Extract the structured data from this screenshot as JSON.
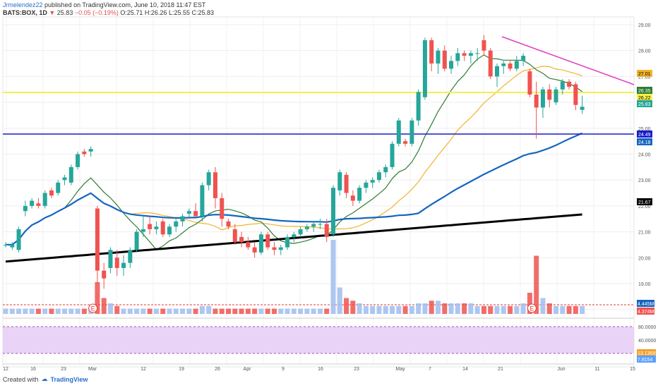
{
  "header": {
    "author": "Jrmelendez22",
    "published": "published on TradingView.com, June 10, 2018 11:47 EST",
    "symbol": "BATS:BOX, 1D",
    "last": "25.83",
    "change": "−0.05 (−0.19%)",
    "ohlc": "O:25.71 H:26.26 L:25.55 C:25.83"
  },
  "footer": {
    "created_with": "Created with",
    "brand": "TradingView"
  },
  "colors": {
    "up": "#26a69a",
    "down": "#ef5350",
    "sma_short": "#2e7d32",
    "sma_mid": "#f0b429",
    "sma_long": "#1565c0",
    "sma_200": "#000000",
    "trend": "#e040c0",
    "support_h": "#f7f04a",
    "support_blue": "#1a1acc",
    "volume": "#9fbdf0"
  },
  "chart_data": [
    {
      "type": "candlestick",
      "title": "BATS:BOX, 1D",
      "price_ticks": [
        "29.00",
        "28.00",
        "27.00",
        "26.00",
        "25.00",
        "24.00",
        "23.00",
        "22.00",
        "21.00",
        "20.00",
        "19.00",
        "18.00"
      ],
      "ylim": [
        17.8,
        29.3
      ],
      "price_labels": [
        {
          "value": "27.01",
          "color": "#f0b429",
          "text_color": "#000"
        },
        {
          "value": "26.35",
          "color": "#2e7d32",
          "text_color": "#fff"
        },
        {
          "value": "26.22",
          "color": "#f7f04a",
          "text_color": "#000"
        },
        {
          "value": "25.83",
          "color": "#26a69a",
          "text_color": "#fff"
        },
        {
          "value": "24.49",
          "color": "#1a1acc",
          "text_color": "#fff"
        },
        {
          "value": "24.18",
          "color": "#1565c0",
          "text_color": "#fff"
        },
        {
          "value": "21.67",
          "color": "#000000",
          "text_color": "#fff"
        }
      ],
      "x_ticks": [
        "12",
        "16",
        "23",
        "Mar",
        "12",
        "19",
        "26",
        "Apr",
        "9",
        "16",
        "23",
        "May",
        "7",
        "14",
        "21",
        "Jun",
        "11",
        "15"
      ],
      "candles": [
        {
          "o": 20.5,
          "h": 20.6,
          "l": 20.4,
          "c": 20.5
        },
        {
          "o": 20.4,
          "h": 20.6,
          "l": 20.3,
          "c": 20.5
        },
        {
          "o": 20.3,
          "h": 21.2,
          "l": 20.2,
          "c": 21.1
        },
        {
          "o": 21.8,
          "h": 22.2,
          "l": 21.6,
          "c": 22.0
        },
        {
          "o": 22.0,
          "h": 22.3,
          "l": 21.9,
          "c": 22.2
        },
        {
          "o": 22.1,
          "h": 22.3,
          "l": 21.9,
          "c": 22.0
        },
        {
          "o": 22.0,
          "h": 22.6,
          "l": 21.9,
          "c": 22.5
        },
        {
          "o": 22.6,
          "h": 22.7,
          "l": 22.3,
          "c": 22.4
        },
        {
          "o": 22.5,
          "h": 23.0,
          "l": 22.4,
          "c": 22.9
        },
        {
          "o": 23.0,
          "h": 23.2,
          "l": 22.8,
          "c": 23.1
        },
        {
          "o": 22.9,
          "h": 23.6,
          "l": 22.8,
          "c": 23.5
        },
        {
          "o": 23.5,
          "h": 24.1,
          "l": 23.4,
          "c": 24.0
        },
        {
          "o": 24.1,
          "h": 24.2,
          "l": 23.9,
          "c": 24.0
        },
        {
          "o": 24.1,
          "h": 24.3,
          "l": 23.9,
          "c": 24.2
        },
        {
          "o": 21.9,
          "h": 22.0,
          "l": 19.0,
          "c": 19.5
        },
        {
          "o": 19.5,
          "h": 19.8,
          "l": 18.8,
          "c": 19.2
        },
        {
          "o": 19.6,
          "h": 20.4,
          "l": 19.4,
          "c": 20.3
        },
        {
          "o": 20.0,
          "h": 20.3,
          "l": 19.3,
          "c": 19.6
        },
        {
          "o": 19.6,
          "h": 20.1,
          "l": 19.3,
          "c": 19.8
        },
        {
          "o": 19.8,
          "h": 20.4,
          "l": 19.6,
          "c": 20.3
        },
        {
          "o": 20.3,
          "h": 21.1,
          "l": 20.2,
          "c": 21.0
        },
        {
          "o": 21.0,
          "h": 21.6,
          "l": 20.8,
          "c": 21.1
        },
        {
          "o": 21.3,
          "h": 21.6,
          "l": 20.9,
          "c": 21.1
        },
        {
          "o": 21.1,
          "h": 21.4,
          "l": 20.9,
          "c": 21.2
        },
        {
          "o": 21.4,
          "h": 21.5,
          "l": 20.8,
          "c": 20.9
        },
        {
          "o": 20.9,
          "h": 21.3,
          "l": 20.8,
          "c": 21.2
        },
        {
          "o": 21.2,
          "h": 21.5,
          "l": 21.0,
          "c": 21.4
        },
        {
          "o": 21.4,
          "h": 21.7,
          "l": 21.2,
          "c": 21.6
        },
        {
          "o": 21.7,
          "h": 21.9,
          "l": 21.5,
          "c": 21.8
        },
        {
          "o": 21.8,
          "h": 22.1,
          "l": 21.6,
          "c": 21.6
        },
        {
          "o": 21.6,
          "h": 22.9,
          "l": 21.4,
          "c": 22.8
        },
        {
          "o": 22.8,
          "h": 23.4,
          "l": 22.6,
          "c": 23.3
        },
        {
          "o": 23.3,
          "h": 23.5,
          "l": 21.9,
          "c": 22.3
        },
        {
          "o": 22.3,
          "h": 22.5,
          "l": 21.2,
          "c": 21.5
        },
        {
          "o": 21.4,
          "h": 21.5,
          "l": 21.1,
          "c": 21.2
        },
        {
          "o": 21.1,
          "h": 21.3,
          "l": 20.5,
          "c": 20.6
        },
        {
          "o": 20.8,
          "h": 21.0,
          "l": 20.4,
          "c": 20.6
        },
        {
          "o": 20.6,
          "h": 20.8,
          "l": 20.3,
          "c": 20.4
        },
        {
          "o": 20.4,
          "h": 20.6,
          "l": 20.0,
          "c": 20.2
        },
        {
          "o": 20.2,
          "h": 21.0,
          "l": 20.1,
          "c": 20.9
        },
        {
          "o": 20.9,
          "h": 21.0,
          "l": 20.3,
          "c": 20.4
        },
        {
          "o": 20.4,
          "h": 20.6,
          "l": 20.1,
          "c": 20.3
        },
        {
          "o": 20.3,
          "h": 20.5,
          "l": 20.1,
          "c": 20.4
        },
        {
          "o": 20.4,
          "h": 20.9,
          "l": 20.3,
          "c": 20.8
        },
        {
          "o": 20.8,
          "h": 21.0,
          "l": 20.6,
          "c": 20.9
        },
        {
          "o": 20.9,
          "h": 21.2,
          "l": 20.8,
          "c": 21.1
        },
        {
          "o": 21.1,
          "h": 21.3,
          "l": 21.0,
          "c": 21.2
        },
        {
          "o": 21.2,
          "h": 21.4,
          "l": 21.0,
          "c": 21.3
        },
        {
          "o": 21.3,
          "h": 21.5,
          "l": 21.1,
          "c": 21.3
        },
        {
          "o": 21.3,
          "h": 21.5,
          "l": 20.6,
          "c": 20.8
        },
        {
          "o": 20.9,
          "h": 22.8,
          "l": 20.8,
          "c": 22.7
        },
        {
          "o": 22.6,
          "h": 23.4,
          "l": 22.4,
          "c": 23.3
        },
        {
          "o": 23.2,
          "h": 23.3,
          "l": 22.3,
          "c": 22.5
        },
        {
          "o": 22.4,
          "h": 22.6,
          "l": 22.0,
          "c": 22.2
        },
        {
          "o": 22.2,
          "h": 22.8,
          "l": 22.1,
          "c": 22.7
        },
        {
          "o": 22.7,
          "h": 23.0,
          "l": 22.5,
          "c": 22.9
        },
        {
          "o": 22.9,
          "h": 23.1,
          "l": 22.7,
          "c": 23.0
        },
        {
          "o": 23.0,
          "h": 23.4,
          "l": 22.9,
          "c": 23.3
        },
        {
          "o": 23.3,
          "h": 23.6,
          "l": 23.1,
          "c": 23.5
        },
        {
          "o": 23.5,
          "h": 24.5,
          "l": 23.4,
          "c": 24.4
        },
        {
          "o": 24.4,
          "h": 25.4,
          "l": 24.3,
          "c": 25.3
        },
        {
          "o": 24.5,
          "h": 24.6,
          "l": 24.3,
          "c": 24.4
        },
        {
          "o": 24.4,
          "h": 25.4,
          "l": 24.3,
          "c": 25.3
        },
        {
          "o": 25.3,
          "h": 26.5,
          "l": 25.1,
          "c": 26.4
        },
        {
          "o": 26.2,
          "h": 28.5,
          "l": 26.1,
          "c": 28.4
        },
        {
          "o": 28.4,
          "h": 28.5,
          "l": 27.2,
          "c": 27.5
        },
        {
          "o": 27.5,
          "h": 28.1,
          "l": 27.1,
          "c": 28.0
        },
        {
          "o": 28.0,
          "h": 28.2,
          "l": 27.2,
          "c": 27.3
        },
        {
          "o": 27.3,
          "h": 27.8,
          "l": 27.1,
          "c": 27.6
        },
        {
          "o": 27.6,
          "h": 28.1,
          "l": 27.4,
          "c": 27.9
        },
        {
          "o": 27.9,
          "h": 28.0,
          "l": 27.6,
          "c": 27.8
        },
        {
          "o": 27.8,
          "h": 28.0,
          "l": 27.5,
          "c": 27.9
        },
        {
          "o": 27.9,
          "h": 28.1,
          "l": 27.6,
          "c": 27.9
        },
        {
          "o": 28.4,
          "h": 28.6,
          "l": 27.8,
          "c": 28.0
        },
        {
          "o": 28.0,
          "h": 28.1,
          "l": 26.9,
          "c": 27.0
        },
        {
          "o": 27.0,
          "h": 27.5,
          "l": 26.6,
          "c": 27.4
        },
        {
          "o": 27.4,
          "h": 27.6,
          "l": 27.1,
          "c": 27.5
        },
        {
          "o": 27.5,
          "h": 27.6,
          "l": 27.2,
          "c": 27.3
        },
        {
          "o": 27.3,
          "h": 27.8,
          "l": 27.2,
          "c": 27.6
        },
        {
          "o": 27.6,
          "h": 27.9,
          "l": 27.4,
          "c": 27.8
        },
        {
          "o": 27.2,
          "h": 27.3,
          "l": 26.2,
          "c": 26.3
        },
        {
          "o": 26.3,
          "h": 26.8,
          "l": 24.6,
          "c": 25.8
        },
        {
          "o": 25.8,
          "h": 26.6,
          "l": 25.4,
          "c": 26.5
        },
        {
          "o": 26.5,
          "h": 26.7,
          "l": 25.8,
          "c": 26.1
        },
        {
          "o": 26.0,
          "h": 26.6,
          "l": 25.9,
          "c": 26.5
        },
        {
          "o": 26.5,
          "h": 26.9,
          "l": 26.3,
          "c": 26.8
        },
        {
          "o": 26.8,
          "h": 26.9,
          "l": 26.5,
          "c": 26.6
        },
        {
          "o": 26.7,
          "h": 26.8,
          "l": 25.7,
          "c": 25.9
        },
        {
          "o": 25.71,
          "h": 26.26,
          "l": 25.55,
          "c": 25.83
        }
      ],
      "volume_labels": [
        {
          "value": "4.445M",
          "color": "#1565c0"
        },
        {
          "value": "4.374M",
          "color": "#ef5350"
        }
      ],
      "volume": [
        1,
        1,
        1,
        1,
        1,
        1,
        1,
        1,
        1,
        1,
        1,
        1,
        1,
        1,
        6,
        3,
        2,
        1.5,
        1,
        1,
        1,
        1,
        1,
        1,
        1,
        1,
        1,
        1,
        1,
        1,
        1.5,
        1.5,
        1,
        1,
        1,
        1,
        1,
        1,
        1,
        1,
        1,
        1,
        1,
        1,
        1,
        1,
        1,
        1,
        1,
        1,
        14,
        5,
        3,
        2.5,
        2,
        1.5,
        1.5,
        1.5,
        1.5,
        1.5,
        1.5,
        1.5,
        1.5,
        2,
        2,
        2.5,
        2.5,
        2,
        2,
        2,
        2,
        2,
        1.5,
        1.5,
        1.5,
        1.5,
        1.5,
        1.5,
        1.5,
        2,
        4,
        11,
        3,
        2,
        1.5,
        1.5,
        1.5,
        1.5,
        1.5
      ],
      "events": [
        {
          "label": "E",
          "index": 13
        },
        {
          "label": "E",
          "index": 80
        }
      ],
      "stoch_ticks": [
        "80.0000",
        "40.0000"
      ],
      "stoch_labels": [
        {
          "value": "13.1369",
          "color": "#f0a030"
        },
        {
          "value": "7.8154",
          "color": "#5aa0ff"
        }
      ]
    }
  ]
}
